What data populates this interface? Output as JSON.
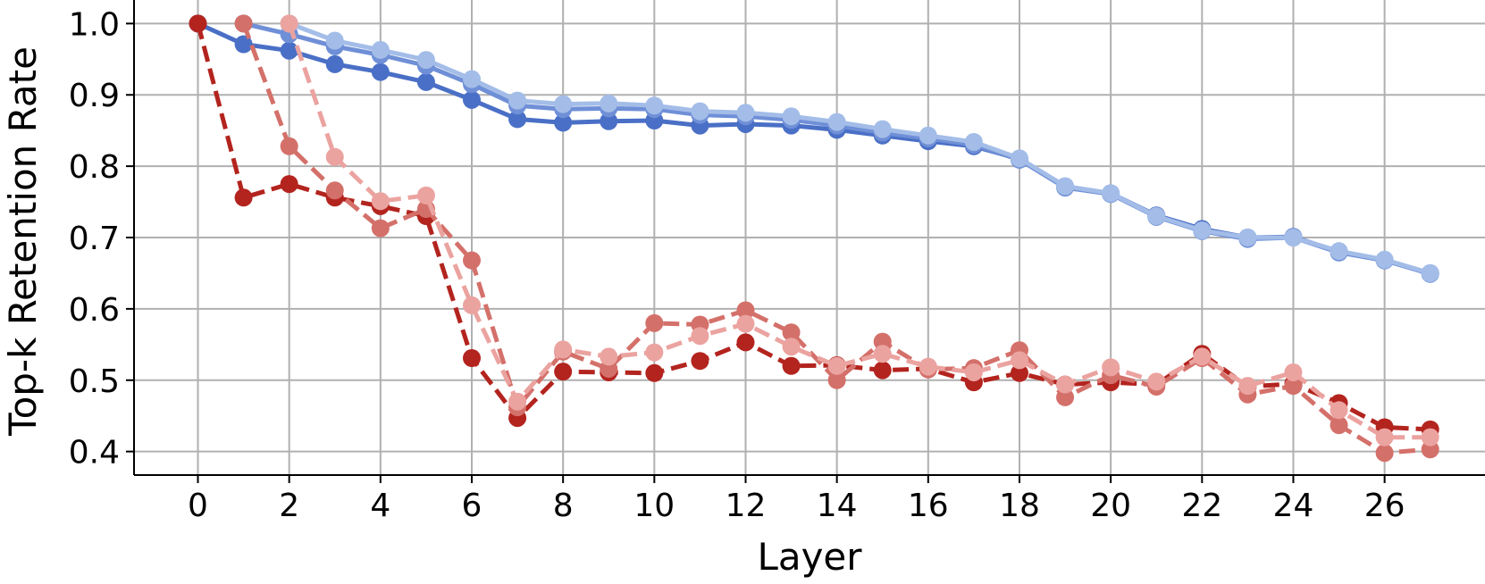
{
  "chart_data": {
    "type": "line",
    "title": "",
    "xlabel": "Layer",
    "ylabel": "Top-k Retention Rate",
    "xlim": [
      -1.4,
      28.2
    ],
    "ylim": [
      0.367,
      1.033
    ],
    "xticks": [
      0,
      2,
      4,
      6,
      8,
      10,
      12,
      14,
      16,
      18,
      20,
      22,
      24,
      26
    ],
    "yticks": [
      0.4,
      0.5,
      0.6,
      0.7,
      0.8,
      0.9,
      1.0
    ],
    "ytick_labels": [
      "0.4",
      "0.5",
      "0.6",
      "0.7",
      "0.8",
      "0.9",
      "1.0"
    ],
    "grid": true,
    "legend": "none",
    "series": [
      {
        "style": "solid",
        "color": "#4a6fc6",
        "x": [
          0,
          1,
          2,
          3,
          4,
          5,
          6,
          7,
          8,
          9,
          10,
          11,
          12,
          13,
          14,
          15,
          16,
          17,
          18,
          19,
          20,
          21,
          22,
          23,
          24,
          25,
          26,
          27
        ],
        "y": [
          1.0,
          0.971,
          0.962,
          0.943,
          0.932,
          0.918,
          0.893,
          0.866,
          0.861,
          0.863,
          0.864,
          0.857,
          0.859,
          0.857,
          0.851,
          0.843,
          0.835,
          0.828,
          0.81,
          0.771,
          0.762,
          0.731,
          0.712,
          0.7,
          0.701,
          0.68,
          0.668,
          0.65
        ]
      },
      {
        "style": "solid",
        "color": "#6f8fd7",
        "x": [
          1,
          2,
          3,
          4,
          5,
          6,
          7,
          8,
          9,
          10,
          11,
          12,
          13,
          14,
          15,
          16,
          17,
          18,
          19,
          20,
          21,
          22,
          23,
          24,
          25,
          26,
          27
        ],
        "y": [
          1.0,
          0.985,
          0.968,
          0.956,
          0.941,
          0.915,
          0.885,
          0.88,
          0.881,
          0.88,
          0.872,
          0.87,
          0.865,
          0.857,
          0.847,
          0.839,
          0.83,
          0.809,
          0.77,
          0.761,
          0.729,
          0.709,
          0.698,
          0.7,
          0.679,
          0.668,
          0.649
        ]
      },
      {
        "style": "solid",
        "color": "#a3bde8",
        "x": [
          2,
          3,
          4,
          5,
          6,
          7,
          8,
          9,
          10,
          11,
          12,
          13,
          14,
          15,
          16,
          17,
          18,
          19,
          20,
          21,
          22,
          23,
          24,
          25,
          26,
          27
        ],
        "y": [
          1.0,
          0.976,
          0.963,
          0.949,
          0.922,
          0.892,
          0.887,
          0.888,
          0.885,
          0.877,
          0.875,
          0.87,
          0.862,
          0.852,
          0.843,
          0.834,
          0.811,
          0.772,
          0.762,
          0.73,
          0.71,
          0.7,
          0.7,
          0.681,
          0.669,
          0.65
        ]
      },
      {
        "style": "dashed",
        "color": "#b3241e",
        "x": [
          0,
          1,
          2,
          3,
          4,
          5,
          6,
          7,
          8,
          9,
          10,
          11,
          12,
          13,
          14,
          15,
          16,
          17,
          18,
          19,
          20,
          21,
          22,
          23,
          24,
          25,
          26,
          27
        ],
        "y": [
          1.0,
          0.756,
          0.775,
          0.756,
          0.744,
          0.73,
          0.531,
          0.447,
          0.512,
          0.511,
          0.51,
          0.527,
          0.553,
          0.52,
          0.521,
          0.514,
          0.516,
          0.497,
          0.51,
          0.494,
          0.497,
          0.494,
          0.537,
          0.491,
          0.495,
          0.468,
          0.434,
          0.431
        ]
      },
      {
        "style": "dashed",
        "color": "#d4706a",
        "x": [
          1,
          2,
          3,
          4,
          5,
          6,
          7,
          8,
          9,
          10,
          11,
          12,
          13,
          14,
          15,
          16,
          17,
          18,
          19,
          20,
          21,
          22,
          23,
          24,
          25,
          26,
          27
        ],
        "y": [
          1.0,
          0.828,
          0.766,
          0.713,
          0.74,
          0.668,
          0.462,
          0.54,
          0.516,
          0.58,
          0.578,
          0.598,
          0.567,
          0.5,
          0.554,
          0.515,
          0.517,
          0.542,
          0.476,
          0.507,
          0.491,
          0.531,
          0.48,
          0.492,
          0.437,
          0.398,
          0.403
        ]
      },
      {
        "style": "dashed",
        "color": "#eba3a0",
        "x": [
          2,
          3,
          4,
          5,
          6,
          7,
          8,
          9,
          10,
          11,
          12,
          13,
          14,
          15,
          16,
          17,
          18,
          19,
          20,
          21,
          22,
          23,
          24,
          25,
          26,
          27
        ],
        "y": [
          1.0,
          0.813,
          0.751,
          0.759,
          0.605,
          0.47,
          0.543,
          0.533,
          0.539,
          0.562,
          0.579,
          0.547,
          0.52,
          0.537,
          0.519,
          0.511,
          0.528,
          0.494,
          0.518,
          0.498,
          0.533,
          0.492,
          0.511,
          0.458,
          0.42,
          0.42
        ]
      }
    ]
  }
}
